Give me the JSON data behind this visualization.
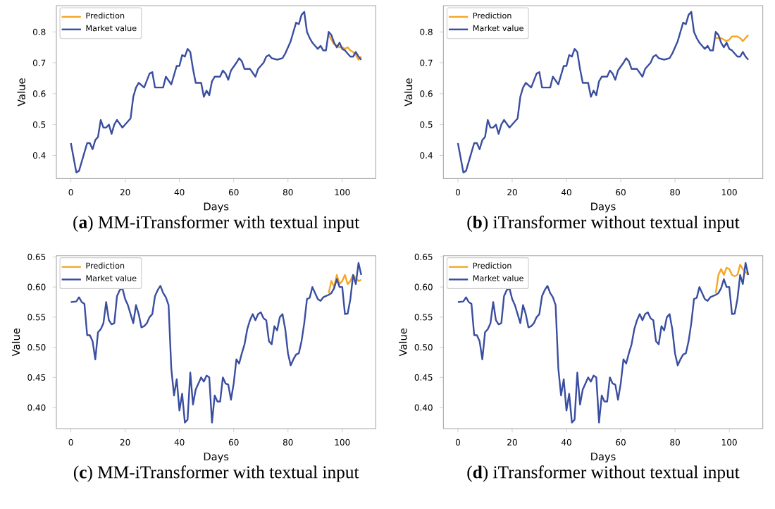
{
  "chart_data": [
    {
      "type": "line",
      "title": "(**a**) MM-iTransformer with textual input",
      "xlabel": "Days",
      "ylabel": "Value",
      "legend": "top left",
      "xlim": [
        -5.35,
        112.35
      ],
      "xticks": [
        0,
        20,
        40,
        60,
        80,
        100
      ],
      "ylim": [
        0.325,
        0.885
      ],
      "yticks": [
        0.4,
        0.5,
        0.6,
        0.7,
        0.8
      ],
      "series": [
        {
          "name": "Prediction",
          "color": "#f5a623",
          "x": [
            95,
            96,
            97,
            98,
            99,
            100,
            101,
            102,
            103,
            104,
            105,
            106,
            107
          ],
          "values": [
            0.79,
            0.775,
            0.76,
            0.755,
            0.75,
            0.75,
            0.745,
            0.75,
            0.74,
            0.735,
            0.725,
            0.71,
            0.72
          ]
        },
        {
          "name": "Market value",
          "color": "#3a4ea0",
          "x": [
            0,
            2,
            3,
            5,
            6,
            7,
            8,
            9,
            10,
            11,
            12,
            13,
            14,
            15,
            16,
            17,
            19,
            21,
            22,
            23,
            24,
            25,
            27,
            29,
            30,
            31,
            33,
            34,
            35,
            37,
            39,
            40,
            41,
            42,
            43,
            44,
            45,
            46,
            48,
            49,
            50,
            51,
            52,
            53,
            55,
            56,
            57,
            58,
            59,
            61,
            62,
            63,
            64,
            66,
            68,
            69,
            71,
            72,
            73,
            74,
            76,
            78,
            79,
            81,
            82,
            83,
            84,
            85,
            86,
            87,
            88,
            89,
            90,
            91,
            92,
            93,
            94,
            95,
            96,
            97,
            98,
            99,
            100,
            101,
            102,
            103,
            104,
            105,
            106,
            107
          ],
          "values": [
            0.44,
            0.345,
            0.35,
            0.41,
            0.44,
            0.44,
            0.42,
            0.45,
            0.46,
            0.515,
            0.49,
            0.49,
            0.5,
            0.47,
            0.5,
            0.515,
            0.49,
            0.51,
            0.52,
            0.59,
            0.62,
            0.635,
            0.62,
            0.665,
            0.67,
            0.62,
            0.62,
            0.62,
            0.655,
            0.63,
            0.69,
            0.69,
            0.725,
            0.72,
            0.745,
            0.735,
            0.68,
            0.635,
            0.635,
            0.59,
            0.61,
            0.595,
            0.64,
            0.655,
            0.655,
            0.675,
            0.665,
            0.645,
            0.675,
            0.7,
            0.715,
            0.705,
            0.68,
            0.68,
            0.655,
            0.68,
            0.7,
            0.72,
            0.725,
            0.715,
            0.71,
            0.715,
            0.73,
            0.77,
            0.8,
            0.83,
            0.825,
            0.855,
            0.865,
            0.8,
            0.78,
            0.765,
            0.755,
            0.745,
            0.755,
            0.74,
            0.74,
            0.8,
            0.79,
            0.765,
            0.75,
            0.765,
            0.745,
            0.74,
            0.73,
            0.72,
            0.72,
            0.735,
            0.72,
            0.71
          ]
        }
      ]
    },
    {
      "type": "line",
      "title": "(**b**) iTransformer without textual input",
      "xlabel": "Days",
      "ylabel": "Value",
      "legend": "top left",
      "xlim": [
        -5.35,
        112.35
      ],
      "xticks": [
        0,
        20,
        40,
        60,
        80,
        100
      ],
      "ylim": [
        0.325,
        0.885
      ],
      "yticks": [
        0.4,
        0.5,
        0.6,
        0.7,
        0.8
      ],
      "series": [
        {
          "name": "Prediction",
          "color": "#f5a623",
          "x": [
            95,
            96,
            97,
            98,
            99,
            100,
            101,
            102,
            103,
            104,
            105,
            106,
            107
          ],
          "values": [
            0.78,
            0.78,
            0.78,
            0.775,
            0.77,
            0.775,
            0.785,
            0.785,
            0.785,
            0.78,
            0.77,
            0.78,
            0.79
          ]
        },
        {
          "name": "Market value",
          "color": "#3a4ea0",
          "x": [
            0,
            2,
            3,
            5,
            6,
            7,
            8,
            9,
            10,
            11,
            12,
            13,
            14,
            15,
            16,
            17,
            19,
            21,
            22,
            23,
            24,
            25,
            27,
            29,
            30,
            31,
            33,
            34,
            35,
            37,
            39,
            40,
            41,
            42,
            43,
            44,
            45,
            46,
            48,
            49,
            50,
            51,
            52,
            53,
            55,
            56,
            57,
            58,
            59,
            61,
            62,
            63,
            64,
            66,
            68,
            69,
            71,
            72,
            73,
            74,
            76,
            78,
            79,
            81,
            82,
            83,
            84,
            85,
            86,
            87,
            88,
            89,
            90,
            91,
            92,
            93,
            94,
            95,
            96,
            97,
            98,
            99,
            100,
            101,
            102,
            103,
            104,
            105,
            106,
            107
          ],
          "values": [
            0.44,
            0.345,
            0.35,
            0.41,
            0.44,
            0.44,
            0.42,
            0.45,
            0.46,
            0.515,
            0.49,
            0.49,
            0.5,
            0.47,
            0.5,
            0.515,
            0.49,
            0.51,
            0.52,
            0.59,
            0.62,
            0.635,
            0.62,
            0.665,
            0.67,
            0.62,
            0.62,
            0.62,
            0.655,
            0.63,
            0.69,
            0.69,
            0.725,
            0.72,
            0.745,
            0.735,
            0.68,
            0.635,
            0.635,
            0.59,
            0.61,
            0.595,
            0.64,
            0.655,
            0.655,
            0.675,
            0.665,
            0.645,
            0.675,
            0.7,
            0.715,
            0.705,
            0.68,
            0.68,
            0.655,
            0.68,
            0.7,
            0.72,
            0.725,
            0.715,
            0.71,
            0.715,
            0.73,
            0.77,
            0.8,
            0.83,
            0.825,
            0.855,
            0.865,
            0.8,
            0.78,
            0.765,
            0.755,
            0.745,
            0.755,
            0.74,
            0.74,
            0.8,
            0.79,
            0.765,
            0.75,
            0.765,
            0.745,
            0.74,
            0.73,
            0.72,
            0.72,
            0.735,
            0.72,
            0.71
          ]
        }
      ]
    },
    {
      "type": "line",
      "title": "(**c**) MM-iTransformer with textual input",
      "xlabel": "Days",
      "ylabel": "Value",
      "legend": "top left",
      "xlim": [
        -5.35,
        112.35
      ],
      "xticks": [
        0,
        20,
        40,
        60,
        80,
        100
      ],
      "ylim": [
        0.365,
        0.652
      ],
      "yticks": [
        {
          "value": 0.4,
          "label": "0.40"
        },
        {
          "value": 0.45,
          "label": "0.45"
        },
        {
          "value": 0.5,
          "label": "0.50"
        },
        {
          "value": 0.55,
          "label": "0.55"
        },
        {
          "value": 0.6,
          "label": "0.60"
        },
        {
          "value": 0.65,
          "label": "0.65"
        }
      ],
      "series": [
        {
          "name": "Prediction",
          "color": "#f5a623",
          "x": [
            95,
            96,
            97,
            98,
            99,
            100,
            101,
            102,
            103,
            104,
            105,
            106,
            107
          ],
          "values": [
            0.59,
            0.61,
            0.6,
            0.62,
            0.605,
            0.61,
            0.62,
            0.605,
            0.61,
            0.62,
            0.615,
            0.61,
            0.612
          ]
        },
        {
          "name": "Market value",
          "color": "#3a4ea0",
          "x": [
            0,
            2,
            3,
            4,
            5,
            6,
            7,
            8,
            9,
            10,
            11,
            12,
            13,
            14,
            15,
            16,
            17,
            18,
            19,
            20,
            21,
            22,
            23,
            24,
            25,
            26,
            27,
            28,
            29,
            30,
            31,
            32,
            33,
            34,
            35,
            36,
            37,
            38,
            39,
            40,
            41,
            42,
            43,
            44,
            45,
            46,
            47,
            48,
            49,
            50,
            51,
            52,
            53,
            54,
            55,
            56,
            57,
            58,
            59,
            60,
            61,
            62,
            63,
            64,
            65,
            66,
            67,
            68,
            69,
            70,
            71,
            72,
            73,
            74,
            75,
            76,
            77,
            78,
            79,
            80,
            81,
            82,
            83,
            84,
            85,
            86,
            87,
            88,
            89,
            90,
            91,
            92,
            93,
            94,
            95,
            96,
            97,
            98,
            99,
            100,
            101,
            102,
            103,
            104,
            105,
            106,
            107
          ],
          "values": [
            0.575,
            0.576,
            0.583,
            0.575,
            0.572,
            0.52,
            0.52,
            0.51,
            0.48,
            0.525,
            0.53,
            0.54,
            0.575,
            0.545,
            0.538,
            0.54,
            0.585,
            0.595,
            0.598,
            0.58,
            0.57,
            0.555,
            0.54,
            0.57,
            0.555,
            0.533,
            0.535,
            0.54,
            0.55,
            0.555,
            0.585,
            0.595,
            0.602,
            0.59,
            0.583,
            0.57,
            0.465,
            0.42,
            0.447,
            0.395,
            0.423,
            0.375,
            0.38,
            0.458,
            0.405,
            0.43,
            0.44,
            0.45,
            0.443,
            0.453,
            0.45,
            0.375,
            0.42,
            0.41,
            0.41,
            0.45,
            0.44,
            0.438,
            0.413,
            0.44,
            0.48,
            0.473,
            0.49,
            0.505,
            0.53,
            0.545,
            0.555,
            0.545,
            0.555,
            0.558,
            0.548,
            0.545,
            0.51,
            0.505,
            0.535,
            0.528,
            0.55,
            0.555,
            0.53,
            0.49,
            0.47,
            0.48,
            0.488,
            0.49,
            0.51,
            0.54,
            0.58,
            0.582,
            0.6,
            0.59,
            0.58,
            0.577,
            0.583,
            0.585,
            0.587,
            0.59,
            0.598,
            0.613,
            0.6,
            0.6,
            0.555,
            0.556,
            0.58,
            0.62,
            0.605,
            0.64,
            0.62
          ]
        }
      ]
    },
    {
      "type": "line",
      "title": "(**d**) iTransformer without textual input",
      "xlabel": "Days",
      "ylabel": "Value",
      "legend": "top left",
      "xlim": [
        -5.35,
        112.35
      ],
      "xticks": [
        0,
        20,
        40,
        60,
        80,
        100
      ],
      "ylim": [
        0.365,
        0.652
      ],
      "yticks": [
        {
          "value": 0.4,
          "label": "0.40"
        },
        {
          "value": 0.45,
          "label": "0.45"
        },
        {
          "value": 0.5,
          "label": "0.50"
        },
        {
          "value": 0.55,
          "label": "0.55"
        },
        {
          "value": 0.6,
          "label": "0.60"
        },
        {
          "value": 0.65,
          "label": "0.65"
        }
      ],
      "series": [
        {
          "name": "Prediction",
          "color": "#f5a623",
          "x": [
            95,
            96,
            97,
            98,
            99,
            100,
            101,
            102,
            103,
            104,
            105,
            106,
            107
          ],
          "values": [
            0.59,
            0.62,
            0.63,
            0.62,
            0.632,
            0.63,
            0.62,
            0.618,
            0.62,
            0.637,
            0.63,
            0.625,
            0.62
          ]
        },
        {
          "name": "Market value",
          "color": "#3a4ea0",
          "x": [
            0,
            2,
            3,
            4,
            5,
            6,
            7,
            8,
            9,
            10,
            11,
            12,
            13,
            14,
            15,
            16,
            17,
            18,
            19,
            20,
            21,
            22,
            23,
            24,
            25,
            26,
            27,
            28,
            29,
            30,
            31,
            32,
            33,
            34,
            35,
            36,
            37,
            38,
            39,
            40,
            41,
            42,
            43,
            44,
            45,
            46,
            47,
            48,
            49,
            50,
            51,
            52,
            53,
            54,
            55,
            56,
            57,
            58,
            59,
            60,
            61,
            62,
            63,
            64,
            65,
            66,
            67,
            68,
            69,
            70,
            71,
            72,
            73,
            74,
            75,
            76,
            77,
            78,
            79,
            80,
            81,
            82,
            83,
            84,
            85,
            86,
            87,
            88,
            89,
            90,
            91,
            92,
            93,
            94,
            95,
            96,
            97,
            98,
            99,
            100,
            101,
            102,
            103,
            104,
            105,
            106,
            107
          ],
          "values": [
            0.575,
            0.576,
            0.583,
            0.575,
            0.572,
            0.52,
            0.52,
            0.51,
            0.48,
            0.525,
            0.53,
            0.54,
            0.575,
            0.545,
            0.538,
            0.54,
            0.585,
            0.595,
            0.598,
            0.58,
            0.57,
            0.555,
            0.54,
            0.57,
            0.555,
            0.533,
            0.535,
            0.54,
            0.55,
            0.555,
            0.585,
            0.595,
            0.602,
            0.59,
            0.583,
            0.57,
            0.465,
            0.42,
            0.447,
            0.395,
            0.423,
            0.375,
            0.38,
            0.458,
            0.405,
            0.43,
            0.44,
            0.45,
            0.443,
            0.453,
            0.45,
            0.375,
            0.42,
            0.41,
            0.41,
            0.45,
            0.44,
            0.438,
            0.413,
            0.44,
            0.48,
            0.473,
            0.49,
            0.505,
            0.53,
            0.545,
            0.555,
            0.545,
            0.555,
            0.558,
            0.548,
            0.545,
            0.51,
            0.505,
            0.535,
            0.528,
            0.55,
            0.555,
            0.53,
            0.49,
            0.47,
            0.48,
            0.488,
            0.49,
            0.51,
            0.54,
            0.58,
            0.582,
            0.6,
            0.59,
            0.58,
            0.577,
            0.583,
            0.585,
            0.587,
            0.59,
            0.598,
            0.613,
            0.6,
            0.6,
            0.555,
            0.556,
            0.58,
            0.62,
            0.605,
            0.64,
            0.62
          ]
        }
      ]
    }
  ]
}
